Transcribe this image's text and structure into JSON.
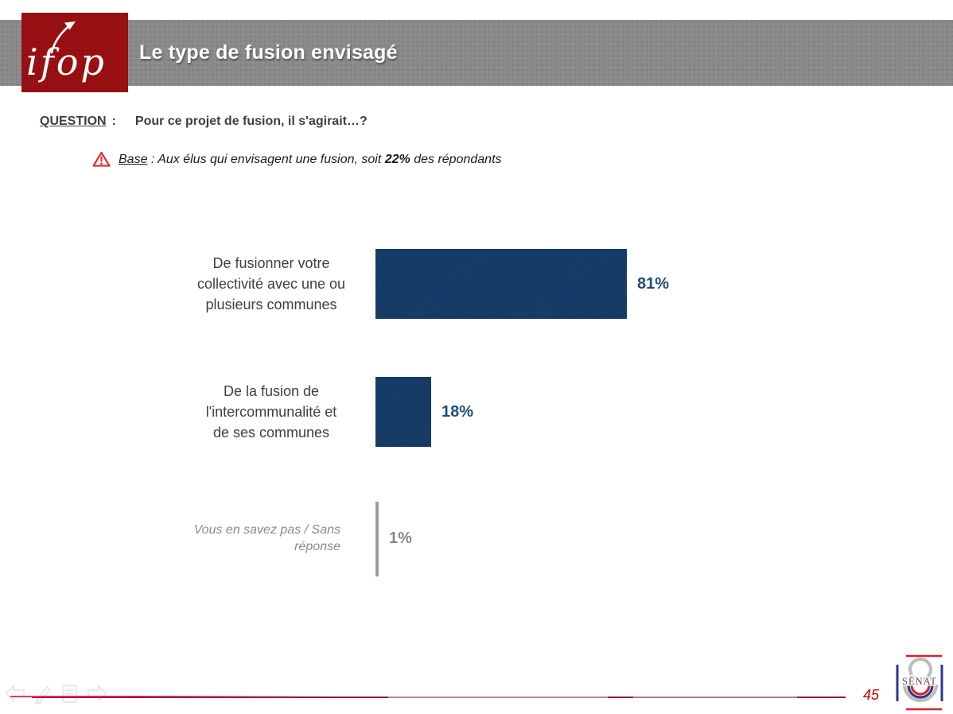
{
  "header": {
    "logo_text": "ifop",
    "logo_bg": "#9A1013",
    "banner_bg": "#8A8A8A",
    "title": "Le type de fusion envisagé",
    "title_color": "#FFFFFF"
  },
  "question": {
    "label": "QUESTION",
    "separator": ":",
    "text": "Pour ce projet de fusion, il s'agirait…?"
  },
  "base_note": {
    "icon": "warning-triangle-icon",
    "label": "Base",
    "text_mid": " : Aux élus qui envisagent une fusion, soit ",
    "highlight": "22%",
    "text_end": " des répondants"
  },
  "chart_data": {
    "type": "bar",
    "orientation": "horizontal",
    "title": "",
    "xlabel": "",
    "ylabel": "",
    "xlim": [
      0,
      100
    ],
    "gridlines": false,
    "legend": false,
    "categories": [
      "De fusionner votre collectivité avec une ou plusieurs communes",
      "De la fusion de l'intercommunalité et de ses communes",
      "Vous en savez pas / Sans réponse"
    ],
    "categories_display": [
      "De fusionner votre\ncollectivité avec une ou\nplusieurs communes",
      "De la fusion de\nl'intercommunalité et\nde ses communes",
      "Vous en savez pas / Sans\nréponse"
    ],
    "values": [
      81,
      18,
      1
    ],
    "value_labels": [
      "81%",
      "18%",
      "1%"
    ],
    "bar_color": "#123A68",
    "muted_bar_color": "#9E9E9E",
    "value_label_color": "#1F4E79",
    "muted_text_color": "#878787",
    "category_label_color": "#3F3F3F"
  },
  "footer": {
    "page_number": "45",
    "page_number_color": "#C00000",
    "rule_color": "#9A1B30",
    "nav_icons": [
      "back-arrow-icon",
      "pencil-icon",
      "document-icon",
      "forward-arrow-icon"
    ],
    "senat_logo": {
      "text": "SÉNAT",
      "red": "#D8232A",
      "blue": "#2B3990",
      "gray": "#BDBDBD"
    }
  }
}
